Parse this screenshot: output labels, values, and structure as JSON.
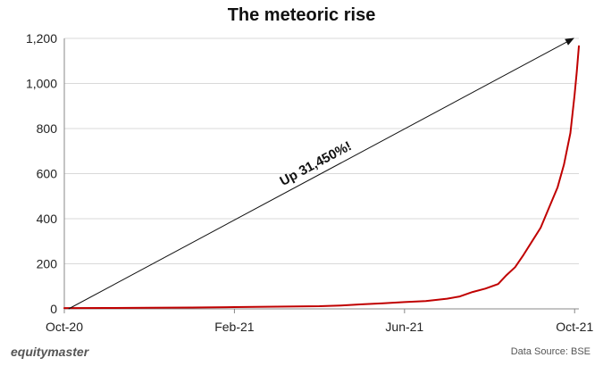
{
  "chart_data": {
    "type": "line",
    "title": "The meteoric rise",
    "xlabel": "",
    "ylabel": "",
    "x_tick_labels": [
      "Oct-20",
      "Feb-21",
      "Jun-21",
      "Oct-21"
    ],
    "x_tick_positions_months": [
      0,
      4,
      8,
      12
    ],
    "xlim_months": [
      0,
      12.1
    ],
    "ylim": [
      0,
      1200
    ],
    "y_ticks": [
      0,
      200,
      400,
      600,
      800,
      1000,
      1200
    ],
    "y_tick_labels": [
      "0",
      "200",
      "400",
      "600",
      "800",
      "1,000",
      "1,200"
    ],
    "grid": true,
    "series": [
      {
        "color": "#c00000",
        "x_months": [
          0,
          1,
          2,
          3,
          4,
          5,
          6,
          6.5,
          7,
          7.5,
          8,
          8.5,
          9,
          9.3,
          9.6,
          9.9,
          10.2,
          10.4,
          10.6,
          10.8,
          11.0,
          11.2,
          11.4,
          11.6,
          11.75,
          11.9,
          12.0,
          12.05,
          12.1
        ],
        "values": [
          3.7,
          4,
          5,
          6,
          8,
          10,
          12,
          15,
          20,
          25,
          30,
          35,
          45,
          55,
          75,
          90,
          110,
          150,
          185,
          240,
          300,
          360,
          450,
          540,
          640,
          780,
          950,
          1050,
          1165
        ]
      }
    ],
    "annotation": {
      "text": "Up 31,450%!",
      "from": {
        "x_months": 0.1,
        "value": 0
      },
      "to": {
        "x_months": 12.1,
        "value": 1200
      }
    }
  },
  "footer": {
    "brand": "equitymaster",
    "source": "Data Source: BSE"
  },
  "colors": {
    "line": "#c00000",
    "arrow": "#111111",
    "grid": "#d9d9d9",
    "axis": "#888888"
  }
}
